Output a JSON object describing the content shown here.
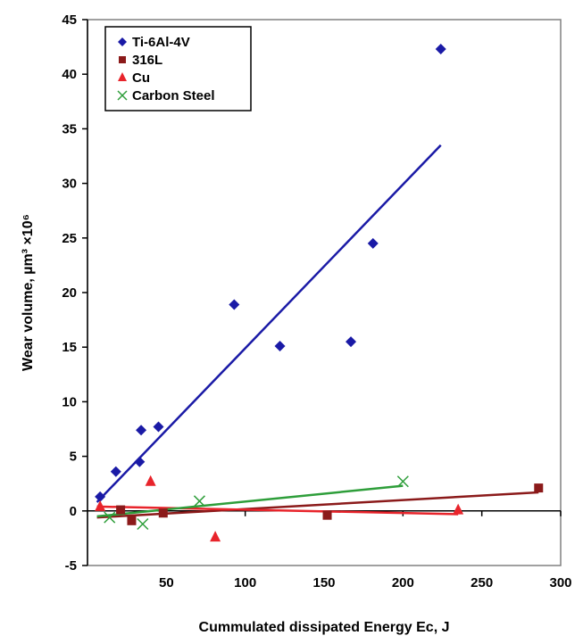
{
  "chart_data": {
    "type": "scatter",
    "title": "",
    "xlabel": "Cummulated dissipated Energy Ec, J",
    "ylabel": "Wear volume, µm³ ×10⁶",
    "xlim": [
      0,
      300
    ],
    "ylim": [
      -5,
      45
    ],
    "x_ticks": [
      "50",
      "100",
      "150",
      "200",
      "250",
      "300"
    ],
    "y_ticks": [
      "-5",
      "0",
      "5",
      "10",
      "15",
      "20",
      "25",
      "30",
      "35",
      "40",
      "45"
    ],
    "grid": false,
    "legend_position": "top-left",
    "series": [
      {
        "name": "Ti-6Al-4V",
        "marker": "diamond",
        "color": "#1a1aa6",
        "points": [
          [
            8,
            1.3
          ],
          [
            18,
            3.6
          ],
          [
            33,
            4.5
          ],
          [
            34,
            7.4
          ],
          [
            45,
            7.7
          ],
          [
            93,
            18.9
          ],
          [
            122,
            15.1
          ],
          [
            167,
            15.5
          ],
          [
            181,
            24.5
          ],
          [
            224,
            42.3
          ]
        ],
        "trendline": [
          [
            6,
            0.8
          ],
          [
            224,
            33.5
          ]
        ]
      },
      {
        "name": "316L",
        "marker": "square",
        "color": "#8b1a1a",
        "points": [
          [
            21,
            0.1
          ],
          [
            28,
            -0.9
          ],
          [
            48,
            -0.2
          ],
          [
            152,
            -0.4
          ],
          [
            286,
            2.1
          ]
        ],
        "trendline": [
          [
            6,
            -0.6
          ],
          [
            286,
            1.7
          ]
        ]
      },
      {
        "name": "Cu",
        "marker": "triangle",
        "color": "#e8242b",
        "points": [
          [
            8,
            0.4
          ],
          [
            40,
            2.7
          ],
          [
            81,
            -2.4
          ],
          [
            235,
            0.1
          ]
        ],
        "trendline": [
          [
            6,
            0.4
          ],
          [
            235,
            -0.3
          ]
        ]
      },
      {
        "name": "Carbon Steel",
        "marker": "x",
        "color": "#2e9e3a",
        "points": [
          [
            14,
            -0.6
          ],
          [
            35,
            -1.2
          ],
          [
            71,
            0.9
          ],
          [
            200,
            2.7
          ]
        ],
        "trendline": [
          [
            6,
            -0.5
          ],
          [
            200,
            2.3
          ]
        ]
      }
    ]
  }
}
